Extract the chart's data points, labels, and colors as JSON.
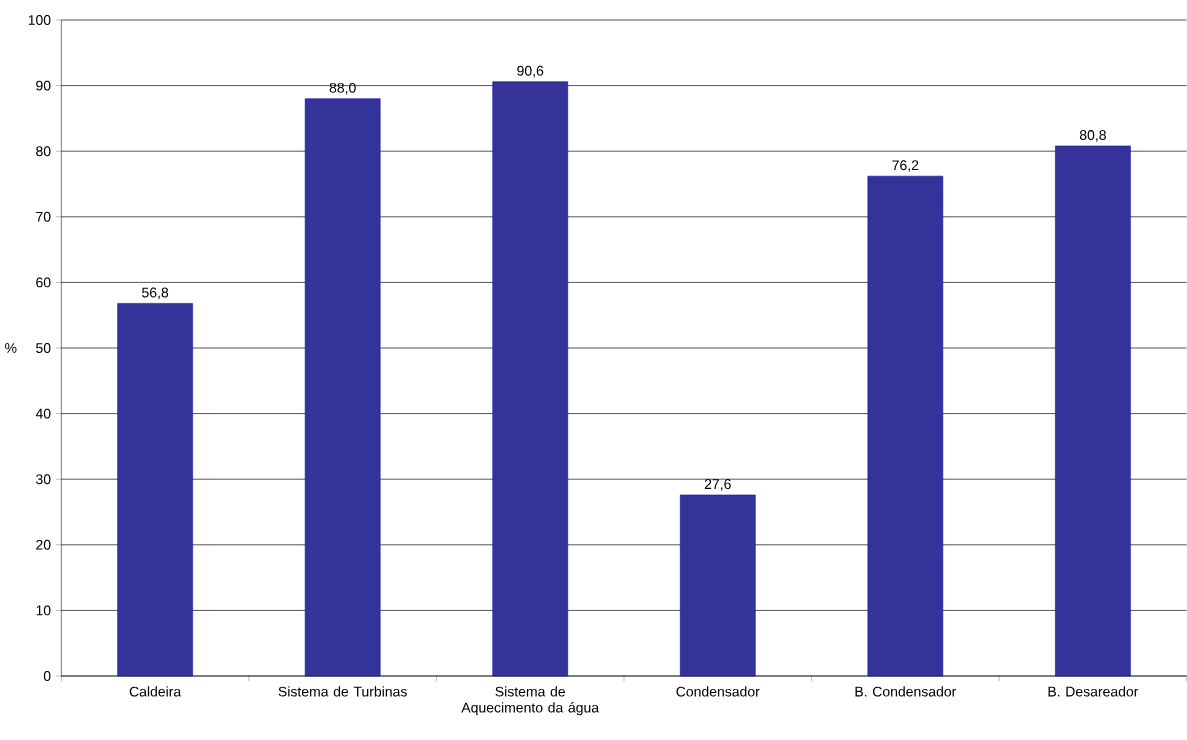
{
  "chart_data": {
    "type": "bar",
    "ylabel": "%",
    "categories": [
      "Caldeira",
      "Sistema de Turbinas",
      "Sistema de Aquecimento da água",
      "Condensador",
      "B. Condensador",
      "B. Desareador"
    ],
    "values": [
      56.8,
      88.0,
      90.6,
      27.6,
      76.2,
      80.8
    ],
    "value_labels": [
      "56,8",
      "88,0",
      "90,6",
      "27,6",
      "76,2",
      "80,8"
    ],
    "color": "#333399",
    "ylim": [
      0,
      100
    ],
    "yticks": [
      0,
      10,
      20,
      30,
      40,
      50,
      60,
      70,
      80,
      90,
      100
    ],
    "grid": "y"
  }
}
